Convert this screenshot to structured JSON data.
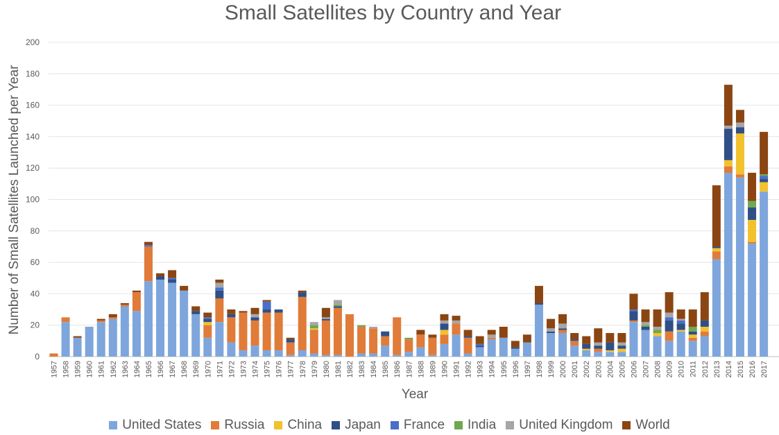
{
  "chart_data": {
    "type": "bar",
    "stacked": true,
    "title": "Small Satellites by Country and Year",
    "xlabel": "Year",
    "ylabel": "Number of Small Satellites Launched per Year",
    "ylim": [
      0,
      200
    ],
    "yticks": [
      0,
      20,
      40,
      60,
      80,
      100,
      120,
      140,
      160,
      180,
      200
    ],
    "grid": true,
    "legend_position": "bottom",
    "categories": [
      "1957",
      "1958",
      "1959",
      "1960",
      "1961",
      "1962",
      "1963",
      "1964",
      "1965",
      "1966",
      "1967",
      "1968",
      "1969",
      "1970",
      "1971",
      "1972",
      "1973",
      "1974",
      "1975",
      "1976",
      "1977",
      "1978",
      "1979",
      "1980",
      "1981",
      "1982",
      "1983",
      "1984",
      "1985",
      "1986",
      "1987",
      "1988",
      "1989",
      "1990",
      "1991",
      "1992",
      "1993",
      "1994",
      "1995",
      "1996",
      "1997",
      "1998",
      "1999",
      "2000",
      "2001",
      "2002",
      "2003",
      "2004",
      "2005",
      "2006",
      "2007",
      "2008",
      "2009",
      "2010",
      "2011",
      "2012",
      "2013",
      "2014",
      "2015",
      "2016",
      "2017"
    ],
    "series": [
      {
        "name": "United States",
        "color": "#7ea6dc",
        "values": [
          0,
          22,
          12,
          19,
          22,
          24,
          32,
          29,
          48,
          49,
          47,
          42,
          27,
          12,
          22,
          9,
          4,
          7,
          4,
          4,
          1,
          4,
          2,
          1,
          1,
          0,
          2,
          2,
          7,
          1,
          3,
          6,
          1,
          8,
          14,
          2,
          6,
          11,
          12,
          5,
          9,
          33,
          15,
          15,
          7,
          4,
          3,
          3,
          3,
          22,
          17,
          13,
          10,
          16,
          10,
          13,
          62,
          117,
          114,
          72,
          105
        ]
      },
      {
        "name": "Russia",
        "color": "#e07b39",
        "values": [
          2,
          3,
          0,
          0,
          1,
          1,
          1,
          12,
          22,
          0,
          0,
          0,
          0,
          8,
          15,
          16,
          24,
          16,
          24,
          24,
          8,
          34,
          15,
          22,
          30,
          27,
          17,
          16,
          6,
          24,
          8,
          8,
          11,
          6,
          7,
          10,
          0,
          1,
          0,
          0,
          0,
          0,
          0,
          2,
          3,
          0,
          2,
          0,
          0,
          1,
          0,
          0,
          6,
          0,
          2,
          3,
          5,
          4,
          2,
          1,
          0
        ]
      },
      {
        "name": "China",
        "color": "#f2c12e",
        "values": [
          0,
          0,
          0,
          0,
          0,
          0,
          0,
          0,
          0,
          0,
          0,
          0,
          0,
          2,
          0,
          0,
          0,
          0,
          0,
          0,
          0,
          0,
          1,
          0,
          0,
          0,
          0,
          0,
          0,
          0,
          0,
          0,
          0,
          3,
          0,
          0,
          0,
          0,
          0,
          0,
          0,
          0,
          0,
          0,
          0,
          1,
          0,
          1,
          2,
          0,
          0,
          2,
          0,
          1,
          2,
          3,
          2,
          4,
          26,
          14,
          6
        ]
      },
      {
        "name": "Japan",
        "color": "#2f4f86",
        "values": [
          0,
          0,
          0,
          0,
          0,
          0,
          0,
          0,
          0,
          2,
          2,
          0,
          2,
          2,
          5,
          2,
          0,
          2,
          2,
          2,
          2,
          3,
          0,
          1,
          1,
          0,
          0,
          0,
          3,
          0,
          0,
          0,
          0,
          4,
          0,
          1,
          1,
          0,
          0,
          1,
          0,
          1,
          1,
          1,
          1,
          3,
          2,
          5,
          2,
          6,
          2,
          0,
          7,
          4,
          2,
          4,
          1,
          20,
          4,
          8,
          2
        ]
      },
      {
        "name": "France",
        "color": "#4a6fc7",
        "values": [
          0,
          0,
          0,
          0,
          0,
          0,
          0,
          0,
          1,
          0,
          1,
          0,
          0,
          1,
          2,
          0,
          0,
          0,
          5,
          0,
          0,
          0,
          0,
          0,
          0,
          0,
          0,
          0,
          0,
          0,
          0,
          0,
          0,
          0,
          0,
          0,
          1,
          0,
          0,
          0,
          0,
          0,
          0,
          0,
          0,
          0,
          0,
          0,
          0,
          1,
          0,
          0,
          2,
          2,
          0,
          0,
          0,
          0,
          0,
          0,
          2
        ]
      },
      {
        "name": "India",
        "color": "#6fa84e",
        "values": [
          0,
          0,
          0,
          0,
          0,
          0,
          0,
          0,
          0,
          0,
          0,
          0,
          0,
          0,
          0,
          0,
          0,
          0,
          0,
          0,
          0,
          0,
          2,
          0,
          1,
          0,
          1,
          0,
          0,
          0,
          1,
          0,
          0,
          0,
          0,
          0,
          0,
          0,
          0,
          0,
          0,
          0,
          0,
          0,
          0,
          0,
          0,
          0,
          0,
          0,
          1,
          2,
          0,
          0,
          3,
          0,
          0,
          0,
          0,
          4,
          1
        ]
      },
      {
        "name": "United Kingdom",
        "color": "#a6a6a6",
        "values": [
          0,
          0,
          0,
          0,
          0,
          0,
          0,
          0,
          0,
          0,
          0,
          0,
          0,
          0,
          3,
          0,
          0,
          2,
          0,
          0,
          0,
          0,
          2,
          1,
          3,
          0,
          0,
          1,
          0,
          0,
          0,
          0,
          0,
          2,
          2,
          0,
          0,
          2,
          0,
          0,
          0,
          0,
          2,
          3,
          0,
          0,
          2,
          0,
          2,
          0,
          2,
          2,
          3,
          1,
          0,
          0,
          0,
          2,
          3,
          0,
          0
        ]
      },
      {
        "name": "World",
        "color": "#8b4513",
        "values": [
          0,
          0,
          1,
          0,
          1,
          2,
          1,
          1,
          2,
          2,
          5,
          3,
          3,
          3,
          2,
          3,
          1,
          4,
          1,
          0,
          1,
          1,
          0,
          6,
          0,
          0,
          0,
          0,
          0,
          0,
          0,
          3,
          2,
          4,
          3,
          4,
          5,
          3,
          7,
          4,
          5,
          11,
          6,
          6,
          4,
          5,
          9,
          6,
          6,
          10,
          8,
          11,
          13,
          6,
          11,
          18,
          39,
          26,
          8,
          18,
          27
        ]
      }
    ]
  }
}
